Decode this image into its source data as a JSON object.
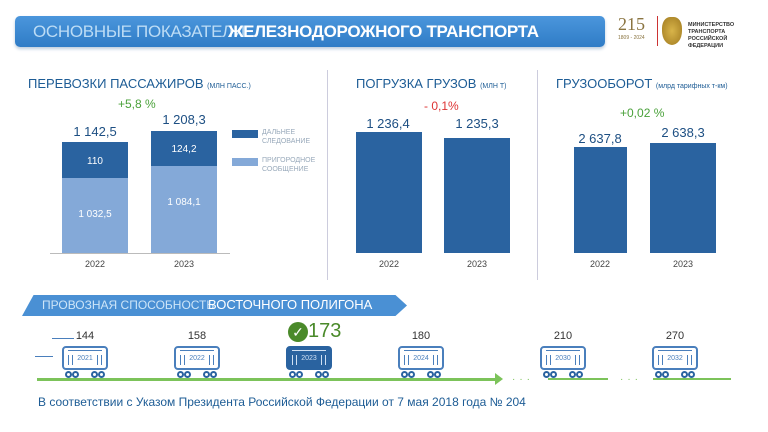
{
  "header": {
    "title_light": "ОСНОВНЫЕ ПОКАЗАТЕЛИ",
    "title_bold": "ЖЕЛЕЗНОДОРОЖНОГО ТРАНСПОРТА",
    "logo_number": "215",
    "logo_years": "1809 - 2024",
    "ministry": "МИНИСТЕРСТВО ТРАНСПОРТА РОССИЙСКОЙ ФЕДЕРАЦИИ"
  },
  "passengers": {
    "title": "ПЕРЕВОЗКИ ПАССАЖИРОВ",
    "unit": "(МЛН ПАСС.)",
    "change": "+5,8 %",
    "years": [
      "2022",
      "2023"
    ],
    "totals": [
      "1 142,5",
      "1 208,3"
    ],
    "long_distance": [
      "110",
      "124,2"
    ],
    "suburban": [
      "1 032,5",
      "1 084,1"
    ],
    "legend": [
      "ДАЛЬНЕЕ СЛЕДОВАНИЕ",
      "ПРИГОРОДНОЕ СООБЩЕНИЕ"
    ],
    "colors": {
      "long": "#2a63a0",
      "suburban": "#84a9d8"
    }
  },
  "loading": {
    "title": "ПОГРУЗКА ГРУЗОВ",
    "unit": "(МЛН Т)",
    "change": "- 0,1%",
    "years": [
      "2022",
      "2023"
    ],
    "values": [
      "1 236,4",
      "1 235,3"
    ]
  },
  "turnover": {
    "title": "ГРУЗООБОРОТ",
    "unit": "(млрд тарифных т-км)",
    "change": "+0,02 %",
    "years": [
      "2022",
      "2023"
    ],
    "values": [
      "2 637,8",
      "2 638,3"
    ]
  },
  "polygon": {
    "title_light": "ПРОВОЗНАЯ СПОСОБНОСТЬ",
    "title_bold": "ВОСТОЧНОГО ПОЛИГОНА",
    "items": [
      {
        "year": "2021",
        "value": "144"
      },
      {
        "year": "2022",
        "value": "158"
      },
      {
        "year": "2023",
        "value": "173",
        "current": true
      },
      {
        "year": "2024",
        "value": "180"
      },
      {
        "year": "2030",
        "value": "210"
      },
      {
        "year": "2032",
        "value": "270"
      }
    ]
  },
  "footer": "В соответствии с Указом Президента Российской Федерации от 7 мая 2018 года № 204"
}
